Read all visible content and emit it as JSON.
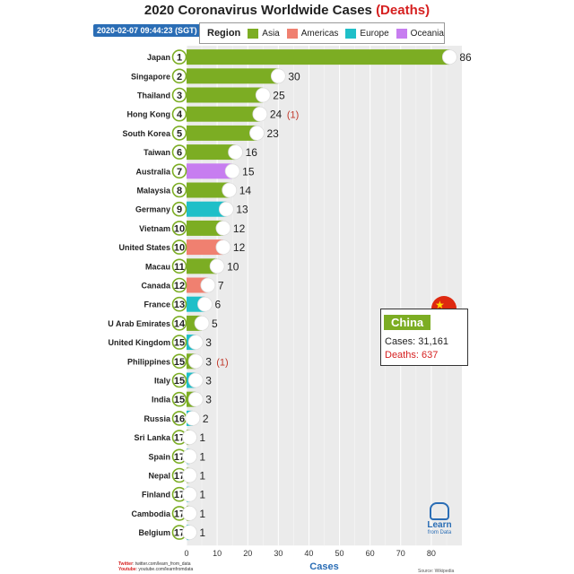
{
  "header": {
    "title_prefix": "2020 Coronavirus Worldwide Cases",
    "title_deaths": "(Deaths)",
    "timestamp": "2020-02-07 09:44:23 (SGT)"
  },
  "legend": {
    "title": "Region",
    "entries": [
      {
        "label": "Asia",
        "color": "#7cad23"
      },
      {
        "label": "Americas",
        "color": "#f08070"
      },
      {
        "label": "Europe",
        "color": "#1fbfc8"
      },
      {
        "label": "Oceania",
        "color": "#c77df0"
      }
    ]
  },
  "chart_data": {
    "type": "bar",
    "orientation": "horizontal",
    "title": "2020 Coronavirus Worldwide Cases (Deaths)",
    "xlabel": "Cases",
    "xlim": [
      0,
      90
    ],
    "xticks": [
      0,
      10,
      20,
      30,
      40,
      50,
      60,
      70,
      80
    ],
    "grid": true,
    "legend_position": "top",
    "categories": [
      "Japan",
      "Singapore",
      "Thailand",
      "Hong Kong",
      "South Korea",
      "Taiwan",
      "Australia",
      "Malaysia",
      "Germany",
      "Vietnam",
      "United States",
      "Macau",
      "Canada",
      "France",
      "U Arab Emirates",
      "United Kingdom",
      "Philippines",
      "Italy",
      "India",
      "Russia",
      "Sri Lanka",
      "Spain",
      "Nepal",
      "Finland",
      "Cambodia",
      "Belgium"
    ],
    "ranks": [
      "1",
      "2",
      "3",
      "4",
      "5",
      "6",
      "7",
      "8",
      "9",
      "10",
      "10",
      "11",
      "12",
      "13",
      "14",
      "15",
      "15",
      "15",
      "15",
      "16",
      "17",
      "17",
      "17",
      "17",
      "17",
      "17"
    ],
    "values": [
      86,
      30,
      25,
      24,
      23,
      16,
      15,
      14,
      13,
      12,
      12,
      10,
      7,
      6,
      5,
      3,
      3,
      3,
      3,
      2,
      1,
      1,
      1,
      1,
      1,
      1
    ],
    "deaths": [
      "",
      "",
      "",
      "(1)",
      "",
      "",
      "",
      "",
      "",
      "",
      "",
      "",
      "",
      "",
      "",
      "",
      "(1)",
      "",
      "",
      "",
      "",
      "",
      "",
      "",
      "",
      ""
    ],
    "regions": [
      "Asia",
      "Asia",
      "Asia",
      "Asia",
      "Asia",
      "Asia",
      "Oceania",
      "Asia",
      "Europe",
      "Asia",
      "Americas",
      "Asia",
      "Americas",
      "Europe",
      "Asia",
      "Europe",
      "Asia",
      "Europe",
      "Asia",
      "Europe",
      "Asia",
      "Europe",
      "Asia",
      "Europe",
      "Asia",
      "Europe"
    ]
  },
  "china": {
    "name": "China",
    "cases": "Cases: 31,161",
    "deaths": "Deaths: 637"
  },
  "footer": {
    "twitter_label": "Twitter",
    "twitter": ": twitter.com/learn_from_data",
    "youtube_label": "Youtube",
    "youtube": ": youtube.com/learnfromdata",
    "source": "Source: Wikipedia"
  },
  "logo": {
    "line1": "Learn",
    "line2": "from Data"
  }
}
